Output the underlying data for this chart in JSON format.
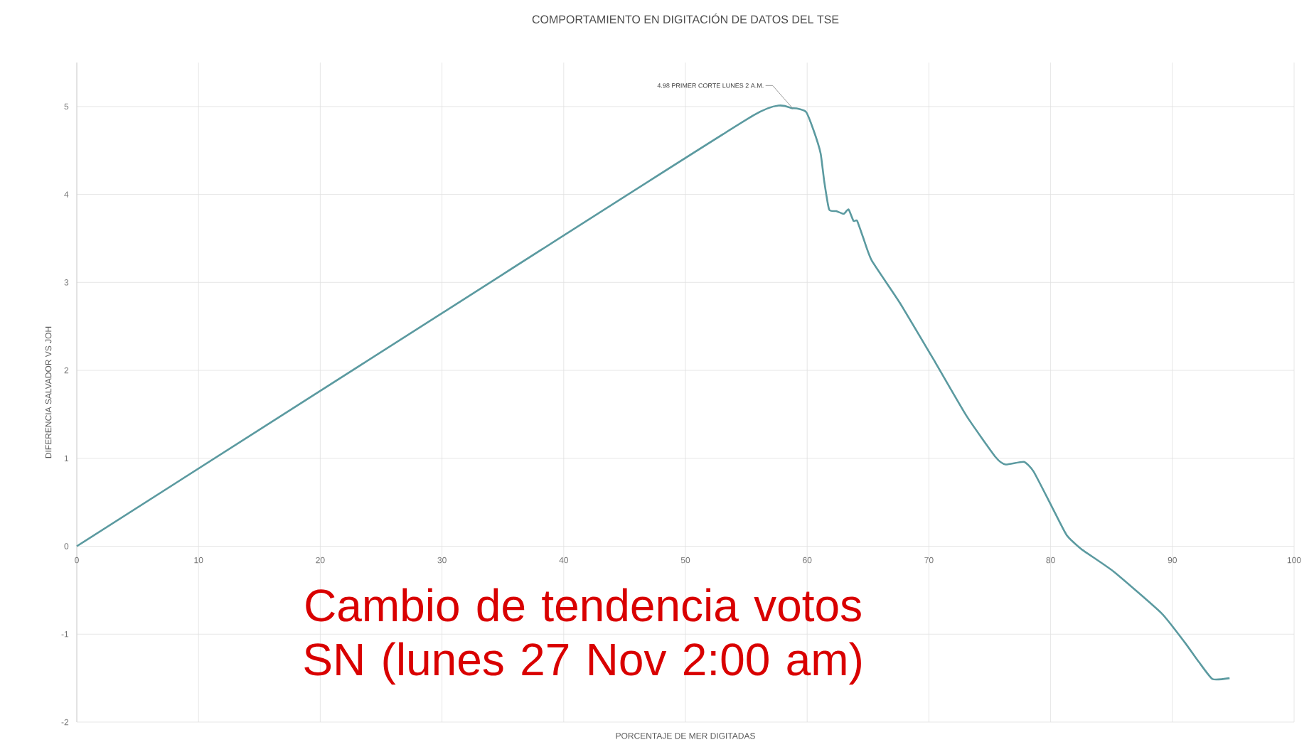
{
  "chart_data": {
    "type": "line",
    "title": "COMPORTAMIENTO EN DIGITACIÓN DE DATOS DEL TSE",
    "xlabel": "PORCENTAJE DE MER DIGITADAS",
    "ylabel": "DIFERENCIA SALVADOR VS JOH",
    "x": [
      0,
      30,
      55.6,
      58.8,
      59.9,
      60.5,
      61.1,
      61.4,
      61.8,
      62.4,
      63.0,
      63.4,
      63.8,
      64.1,
      64.6,
      65.3,
      67.6,
      70.4,
      73.1,
      75.5,
      76.3,
      77.8,
      78.6,
      80.1,
      81.3,
      82.5,
      85.2,
      89.1,
      91.0,
      92.2,
      93.3,
      94.7
    ],
    "series": [
      {
        "color": "#5b9aa0",
        "values": [
          0,
          2.65,
          4.9,
          4.98,
          4.94,
          4.74,
          4.47,
          4.15,
          3.83,
          3.81,
          3.78,
          3.83,
          3.7,
          3.7,
          3.51,
          3.25,
          2.77,
          2.12,
          1.48,
          1.01,
          0.93,
          0.96,
          0.85,
          0.45,
          0.13,
          -0.03,
          -0.29,
          -0.76,
          -1.09,
          -1.32,
          -1.51,
          -1.5
        ]
      }
    ],
    "xlim": [
      0,
      100
    ],
    "xticks": [
      0,
      10,
      20,
      30,
      40,
      50,
      60,
      70,
      80,
      90,
      100
    ],
    "ylim": [
      -2,
      5.5
    ],
    "yticks": [
      -2,
      -1,
      0,
      1,
      2,
      3,
      4,
      5
    ],
    "grid": true,
    "legend": false,
    "marker": "none",
    "line_style": "solid",
    "annotations": [
      {
        "text": "4.98 PRIMER CORTE LUNES 2 A.M.",
        "x": 58.8,
        "y": 4.98
      },
      "Cambio de tendencia votos SN (lunes 27 Nov 2:00 am)"
    ]
  }
}
